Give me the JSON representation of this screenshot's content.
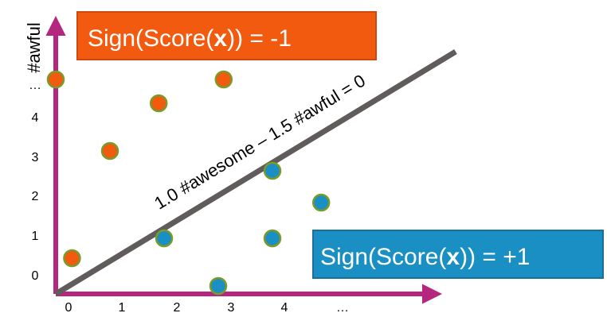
{
  "colors": {
    "axis": "#b5267e",
    "boundary": "#615c5c",
    "negative_fill": "#f25a0f",
    "positive_fill": "#1a8fc4",
    "point_outline": "#7a9a2a",
    "neg_box_fill": "#f25a0f",
    "neg_box_border": "#cc4a10",
    "pos_box_fill": "#1a8fc4",
    "pos_box_border": "#1b6f99"
  },
  "axes": {
    "y_label": "#awful",
    "x_ticks": [
      "0",
      "1",
      "2",
      "3",
      "4",
      "…"
    ],
    "y_ticks": [
      "0",
      "1",
      "2",
      "3",
      "4",
      "…"
    ]
  },
  "boundary": {
    "label": "1.0 #awesome – 1.5 #awful = 0"
  },
  "negative_box": {
    "prefix": "Sign(Score(",
    "bold": "x",
    "suffix": ")) = -1"
  },
  "positive_box": {
    "prefix": "Sign(Score(",
    "bold": "x",
    "suffix": ")) = +1"
  },
  "points": [
    {
      "class": "negative",
      "awesome": 0.0,
      "awful": 4.9
    },
    {
      "class": "negative",
      "awesome": 3.1,
      "awful": 4.9
    },
    {
      "class": "negative",
      "awesome": 1.9,
      "awful": 4.3
    },
    {
      "class": "negative",
      "awesome": 1.0,
      "awful": 3.1
    },
    {
      "class": "negative",
      "awesome": 0.3,
      "awful": 0.4
    },
    {
      "class": "positive",
      "awesome": 4.0,
      "awful": 2.6
    },
    {
      "class": "positive",
      "awesome": 4.9,
      "awful": 1.8
    },
    {
      "class": "positive",
      "awesome": 2.0,
      "awful": 0.9
    },
    {
      "class": "positive",
      "awesome": 4.0,
      "awful": 0.9
    },
    {
      "class": "positive",
      "awesome": 3.0,
      "awful": -0.3
    }
  ]
}
